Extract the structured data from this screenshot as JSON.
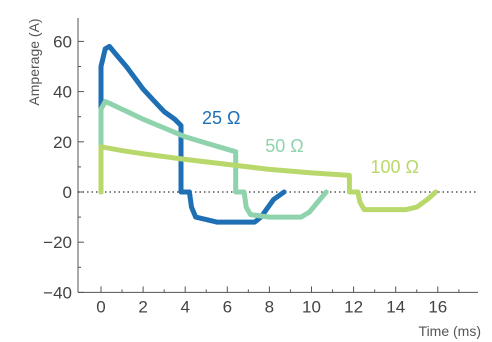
{
  "chart_data": {
    "type": "line",
    "xlabel": "Time (ms)",
    "ylabel": "Amperage (A)",
    "xlim": [
      -1,
      18.5
    ],
    "ylim": [
      -40,
      70
    ],
    "x_ticks": [
      0,
      2,
      4,
      6,
      8,
      10,
      12,
      14,
      16
    ],
    "y_ticks": [
      -40,
      -20,
      0,
      20,
      40,
      60
    ],
    "x_tick_labels": [
      "0",
      "2",
      "4",
      "6",
      "8",
      "10",
      "12",
      "14",
      "16"
    ],
    "y_tick_labels": [
      "−40",
      "−20",
      "0",
      "20",
      "40",
      "60"
    ],
    "zero_line": "dotted",
    "series": [
      {
        "name": "25 Ω",
        "color": "#1f6fb5",
        "points": [
          [
            0,
            0
          ],
          [
            0,
            50
          ],
          [
            0.2,
            57
          ],
          [
            0.4,
            58
          ],
          [
            0.8,
            54
          ],
          [
            1.2,
            50
          ],
          [
            1.6,
            45.5
          ],
          [
            2,
            41
          ],
          [
            2.5,
            36.5
          ],
          [
            3,
            32
          ],
          [
            3.5,
            29
          ],
          [
            3.8,
            26.5
          ],
          [
            3.8,
            0
          ],
          [
            4.2,
            0
          ],
          [
            4.3,
            -6
          ],
          [
            4.5,
            -10
          ],
          [
            5.5,
            -12
          ],
          [
            6.5,
            -12
          ],
          [
            7.3,
            -12
          ],
          [
            7.6,
            -10
          ],
          [
            8.2,
            -3
          ],
          [
            8.7,
            0
          ]
        ]
      },
      {
        "name": "50 Ω",
        "color": "#8fd3ad",
        "points": [
          [
            0,
            0
          ],
          [
            0,
            33
          ],
          [
            0.2,
            36
          ],
          [
            0.5,
            35
          ],
          [
            1,
            33
          ],
          [
            2,
            29
          ],
          [
            3,
            25.5
          ],
          [
            4,
            22
          ],
          [
            5,
            19.5
          ],
          [
            6,
            17
          ],
          [
            6.4,
            16
          ],
          [
            6.4,
            0
          ],
          [
            6.8,
            0
          ],
          [
            6.9,
            -6
          ],
          [
            7.1,
            -9
          ],
          [
            8,
            -10
          ],
          [
            9.5,
            -10
          ],
          [
            9.9,
            -8
          ],
          [
            10.3,
            -4
          ],
          [
            10.7,
            0
          ]
        ]
      },
      {
        "name": "100 Ω",
        "color": "#b9d86b",
        "points": [
          [
            0,
            0
          ],
          [
            0,
            18
          ],
          [
            1,
            16.5
          ],
          [
            2,
            15.2
          ],
          [
            4,
            13
          ],
          [
            6,
            11
          ],
          [
            8,
            9
          ],
          [
            10,
            7.6
          ],
          [
            11.8,
            6.6
          ],
          [
            11.8,
            0
          ],
          [
            12.2,
            0
          ],
          [
            12.3,
            -4
          ],
          [
            12.5,
            -7
          ],
          [
            14.5,
            -7
          ],
          [
            15,
            -6
          ],
          [
            15.5,
            -3
          ],
          [
            15.9,
            0
          ]
        ]
      }
    ],
    "annotations": [
      {
        "text": "25 Ω",
        "x": 4.8,
        "y": 27
      },
      {
        "text": "50 Ω",
        "x": 7.8,
        "y": 16
      },
      {
        "text": "100 Ω",
        "x": 12.8,
        "y": 7.5
      }
    ]
  }
}
